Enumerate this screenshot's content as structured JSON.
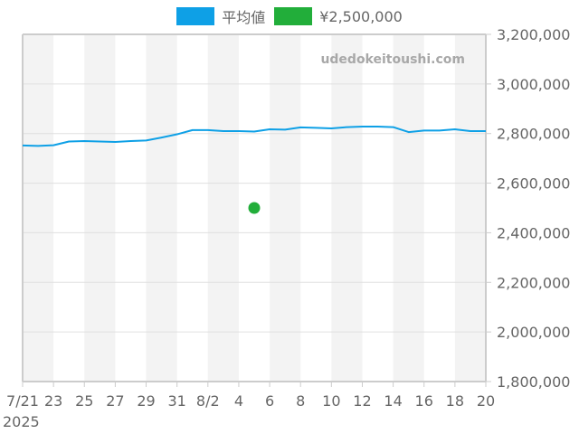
{
  "legend": {
    "items": [
      {
        "label": "平均値",
        "color": "#0ea0e6"
      },
      {
        "label": "¥2,500,000",
        "color": "#22ae3a"
      }
    ]
  },
  "watermark": "udedokeitoushi.com",
  "chart_data": {
    "type": "line",
    "title": "",
    "xlabel": "",
    "ylabel": "",
    "x_tick_labels": [
      "7/21",
      "23",
      "25",
      "27",
      "29",
      "31",
      "8/2",
      "4",
      "6",
      "8",
      "10",
      "12",
      "14",
      "16",
      "18",
      "20"
    ],
    "x_year_label": "2025",
    "y_tick_labels": [
      "3,200,000",
      "3,000,000",
      "2,800,000",
      "2,600,000",
      "2,400,000",
      "2,200,000",
      "2,000,000",
      "1,800,000"
    ],
    "ylim": [
      1800000,
      3200000
    ],
    "y_ticks": [
      3200000,
      3000000,
      2800000,
      2600000,
      2400000,
      2200000,
      2000000,
      1800000
    ],
    "x": [
      "2025-07-21",
      "2025-07-22",
      "2025-07-23",
      "2025-07-24",
      "2025-07-25",
      "2025-07-26",
      "2025-07-27",
      "2025-07-28",
      "2025-07-29",
      "2025-07-30",
      "2025-07-31",
      "2025-08-01",
      "2025-08-02",
      "2025-08-03",
      "2025-08-04",
      "2025-08-05",
      "2025-08-06",
      "2025-08-07",
      "2025-08-08",
      "2025-08-09",
      "2025-08-10",
      "2025-08-11",
      "2025-08-12",
      "2025-08-13",
      "2025-08-14",
      "2025-08-15",
      "2025-08-16",
      "2025-08-17",
      "2025-08-18",
      "2025-08-19",
      "2025-08-20"
    ],
    "series": [
      {
        "name": "平均値",
        "type": "line",
        "color": "#0ea0e6",
        "values": [
          2752000,
          2750000,
          2753000,
          2768000,
          2770000,
          2768000,
          2766000,
          2770000,
          2772000,
          2784000,
          2797000,
          2814000,
          2814000,
          2810000,
          2810000,
          2808000,
          2817000,
          2816000,
          2825000,
          2823000,
          2821000,
          2826000,
          2828000,
          2828000,
          2826000,
          2806000,
          2812000,
          2812000,
          2817000,
          2810000,
          2810000
        ]
      },
      {
        "name": "¥2,500,000",
        "type": "scatter",
        "color": "#22ae3a",
        "points": [
          {
            "x": "2025-08-05",
            "y": 2500000
          }
        ]
      }
    ],
    "grid": true,
    "legend_position": "top",
    "alternating_bands": "every 2 days, shaded #f3f3f3"
  }
}
